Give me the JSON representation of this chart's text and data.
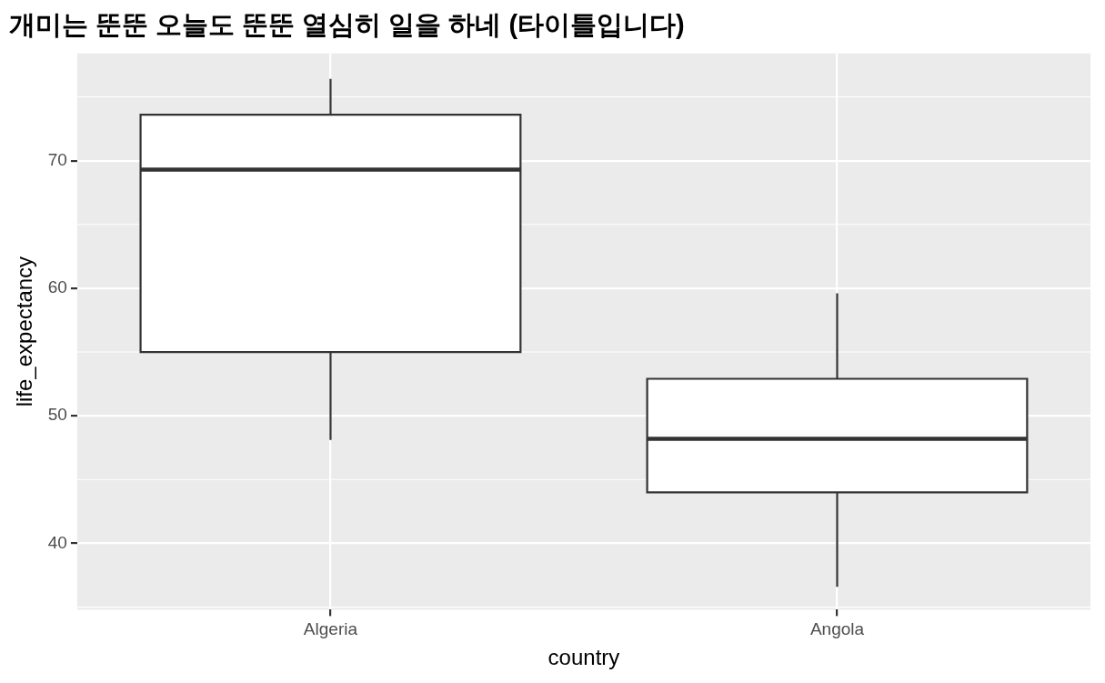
{
  "chart_data": {
    "type": "box",
    "title": "개미는 뚠뚠 오늘도 뚠뚠 열심히 일을 하네 (타이틀입니다)",
    "xlabel": "country",
    "ylabel": "life_expectancy",
    "categories": [
      "Algeria",
      "Angola"
    ],
    "boxes": [
      {
        "low": 48.1,
        "q1": 55.0,
        "median": 69.3,
        "q3": 73.6,
        "high": 76.4
      },
      {
        "low": 36.6,
        "q1": 44.0,
        "median": 48.2,
        "q3": 52.9,
        "high": 59.6
      }
    ],
    "color": "#ffffff",
    "ylim": [
      34.8,
      78.4
    ],
    "yticks": [
      40,
      50,
      60,
      70
    ],
    "grid": true
  }
}
